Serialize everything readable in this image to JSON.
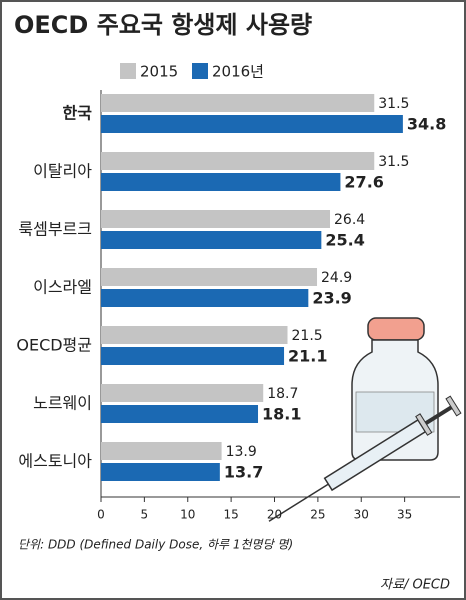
{
  "chart_data": {
    "type": "bar",
    "orientation": "horizontal",
    "title": "OECD 주요국 항생제 사용량",
    "categories": [
      "한국",
      "이탈리아",
      "룩셈부르크",
      "이스라엘",
      "OECD평균",
      "노르웨이",
      "에스토니아"
    ],
    "highlight_index": 0,
    "series": [
      {
        "name": "2015",
        "color": "#c4c4c4",
        "values": [
          31.5,
          31.5,
          26.4,
          24.9,
          21.5,
          18.7,
          13.9
        ]
      },
      {
        "name": "2016년",
        "color": "#1b69b3",
        "values": [
          34.8,
          27.6,
          25.4,
          23.9,
          21.1,
          18.1,
          13.7
        ]
      }
    ],
    "xlim": [
      0,
      40
    ],
    "xticks": [
      0,
      5,
      10,
      15,
      20,
      25,
      30,
      35
    ],
    "note": "단위: DDD (Defined Daily Dose, 하루 1천명당 명)",
    "source": "자료/ OECD"
  }
}
